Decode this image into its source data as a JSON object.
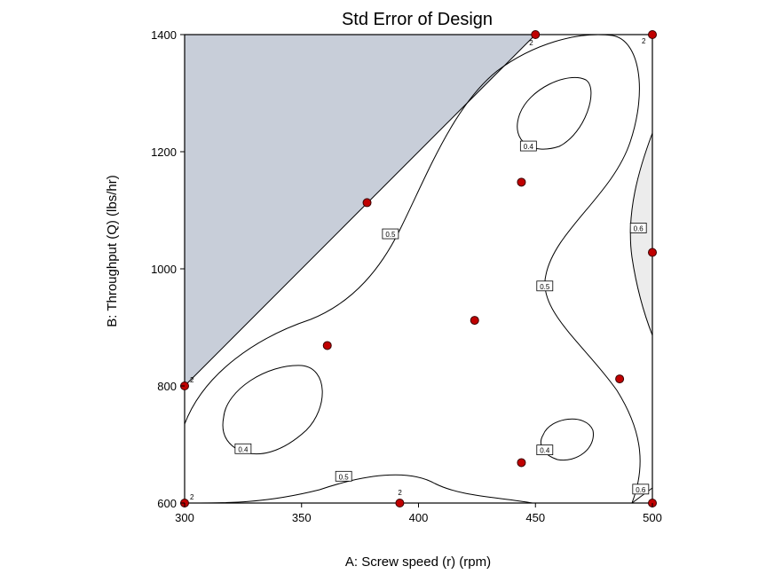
{
  "chart_data": {
    "type": "contour",
    "title": "Std Error of Design",
    "xlabel": "A: Screw speed (r) (rpm)",
    "ylabel": "B: Throughput (Q) (lbs/hr)",
    "xlim": [
      300,
      500
    ],
    "ylim": [
      600,
      1400
    ],
    "x_ticks": [
      "300",
      "350",
      "400",
      "450",
      "500"
    ],
    "y_ticks": [
      "600",
      "800",
      "1000",
      "1200",
      "1400"
    ],
    "infeasible_region_color": "#c8ced9",
    "point_color": "#c00000",
    "design_points": [
      {
        "x": 450,
        "y": 1400,
        "replicates": "2"
      },
      {
        "x": 500,
        "y": 1400,
        "replicates": "2"
      },
      {
        "x": 378,
        "y": 1113,
        "replicates": ""
      },
      {
        "x": 444,
        "y": 1148,
        "replicates": ""
      },
      {
        "x": 500,
        "y": 1028,
        "replicates": ""
      },
      {
        "x": 424,
        "y": 912,
        "replicates": ""
      },
      {
        "x": 361,
        "y": 869,
        "replicates": ""
      },
      {
        "x": 300,
        "y": 800,
        "replicates": "2"
      },
      {
        "x": 486,
        "y": 812,
        "replicates": ""
      },
      {
        "x": 444,
        "y": 669,
        "replicates": ""
      },
      {
        "x": 300,
        "y": 600,
        "replicates": "2"
      },
      {
        "x": 392,
        "y": 600,
        "replicates": "2"
      },
      {
        "x": 500,
        "y": 600,
        "replicates": ""
      }
    ],
    "contour_labels": [
      {
        "text": "0.4",
        "x": 447,
        "y": 1209
      },
      {
        "text": "0.5",
        "x": 388,
        "y": 1059
      },
      {
        "text": "0.6",
        "x": 494,
        "y": 1069
      },
      {
        "text": "0.5",
        "x": 454,
        "y": 970
      },
      {
        "text": "0.4",
        "x": 325,
        "y": 692
      },
      {
        "text": "0.4",
        "x": 454,
        "y": 690
      },
      {
        "text": "0.5",
        "x": 368,
        "y": 645
      },
      {
        "text": "0.6",
        "x": 495,
        "y": 623
      }
    ]
  }
}
